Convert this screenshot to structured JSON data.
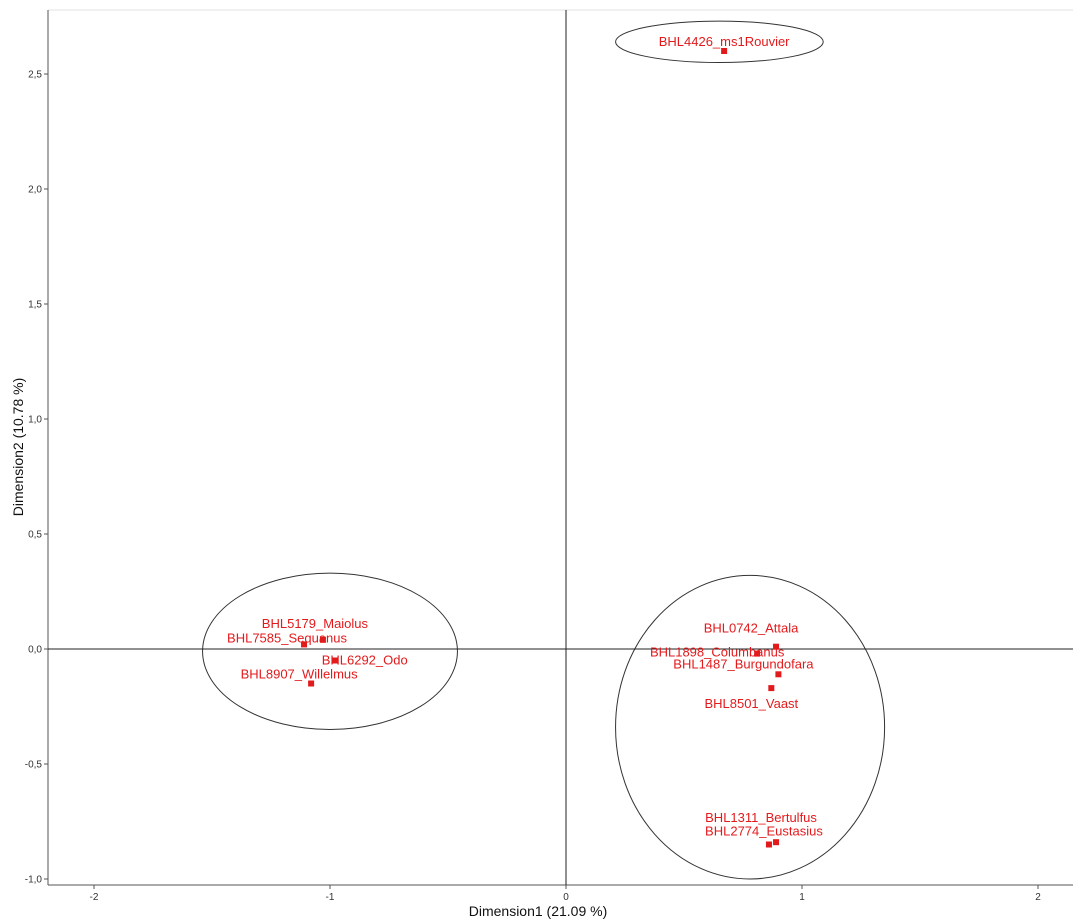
{
  "chart_data": {
    "type": "scatter",
    "xlabel": "Dimension1 (21.09 %)",
    "ylabel": "Dimension2 (10.78 %)",
    "xlim": [
      -2.2,
      2.15
    ],
    "ylim": [
      -1.02,
      2.76
    ],
    "x_ticks": [
      {
        "value": -2,
        "label": "-2"
      },
      {
        "value": -1,
        "label": "-1"
      },
      {
        "value": 0,
        "label": "0"
      },
      {
        "value": 1,
        "label": "1"
      },
      {
        "value": 2,
        "label": "2"
      }
    ],
    "y_ticks": [
      {
        "value": -1.0,
        "label": "-1,0"
      },
      {
        "value": -0.5,
        "label": "-0,5"
      },
      {
        "value": 0.0,
        "label": "0,0"
      },
      {
        "value": 0.5,
        "label": "0,5"
      },
      {
        "value": 1.0,
        "label": "1,0"
      },
      {
        "value": 1.5,
        "label": "1,5"
      },
      {
        "value": 2.0,
        "label": "2,0"
      },
      {
        "value": 2.5,
        "label": "2,5"
      }
    ],
    "reference_lines": {
      "x": 0,
      "y": 0
    },
    "grid": false,
    "point_color": "#e31a1c",
    "points": [
      {
        "label": "BHL4426_ms1Rouvier",
        "x": 0.67,
        "y": 2.6
      },
      {
        "label": "BHL5179_Maiolus",
        "x": -1.03,
        "y": 0.04
      },
      {
        "label": "BHL7585_Sequanus",
        "x": -1.11,
        "y": 0.02
      },
      {
        "label": "BHL6292_Odo",
        "x": -0.98,
        "y": -0.05
      },
      {
        "label": "BHL8907_Willelmus",
        "x": -1.08,
        "y": -0.15
      },
      {
        "label": "BHL0742_Attala",
        "x": 0.89,
        "y": 0.01
      },
      {
        "label": "BHL1898_Columbanus",
        "x": 0.81,
        "y": -0.02
      },
      {
        "label": "BHL1487_Burgundofara",
        "x": 0.9,
        "y": -0.11
      },
      {
        "label": "BHL8501_Vaast",
        "x": 0.87,
        "y": -0.17
      },
      {
        "label": "BHL1311_Bertulfus",
        "x": 0.89,
        "y": -0.84
      },
      {
        "label": "BHL2774_Eustasius",
        "x": 0.86,
        "y": -0.85
      }
    ],
    "ellipses": [
      {
        "cx": 0.65,
        "cy": 2.64,
        "rx": 0.44,
        "ry": 0.09
      },
      {
        "cx": -1.0,
        "cy": -0.01,
        "rx": 0.54,
        "ry": 0.34
      },
      {
        "cx": 0.78,
        "cy": -0.34,
        "rx": 0.57,
        "ry": 0.66
      }
    ]
  }
}
